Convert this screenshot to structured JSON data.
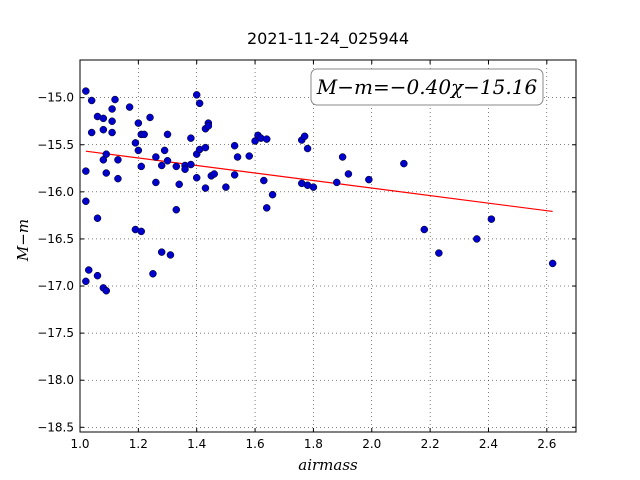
{
  "chart_data": {
    "type": "scatter",
    "title": "2021-11-24_025944",
    "xlabel": "airmass",
    "ylabel": "M−m",
    "xlim": [
      1.0,
      2.7
    ],
    "ylim": [
      -18.55,
      -14.6
    ],
    "xticks": [
      1.0,
      1.2,
      1.4,
      1.6,
      1.8,
      2.0,
      2.2,
      2.4,
      2.6
    ],
    "xtick_labels": [
      "1.0",
      "1.2",
      "1.4",
      "1.6",
      "1.8",
      "2.0",
      "2.2",
      "2.4",
      "2.6"
    ],
    "yticks": [
      -15.0,
      -15.5,
      -16.0,
      -16.5,
      -17.0,
      -17.5,
      -18.0,
      -18.5
    ],
    "ytick_labels": [
      "−15.0",
      "−15.5",
      "−16.0",
      "−16.5",
      "−17.0",
      "−17.5",
      "−18.0",
      "−18.5"
    ],
    "grid": true,
    "annotation": "M−m=−0.40χ−15.16",
    "fit": {
      "slope": -0.4,
      "intercept": -15.16,
      "x_range": [
        1.02,
        2.62
      ],
      "color": "#ff0000"
    },
    "point_color": "#0000cc",
    "points": [
      [
        1.02,
        -14.93
      ],
      [
        1.04,
        -15.03
      ],
      [
        1.02,
        -15.78
      ],
      [
        1.02,
        -16.1
      ],
      [
        1.04,
        -15.37
      ],
      [
        1.06,
        -15.2
      ],
      [
        1.08,
        -15.22
      ],
      [
        1.08,
        -15.34
      ],
      [
        1.11,
        -15.25
      ],
      [
        1.11,
        -15.12
      ],
      [
        1.12,
        -15.02
      ],
      [
        1.11,
        -15.37
      ],
      [
        1.09,
        -15.6
      ],
      [
        1.08,
        -15.66
      ],
      [
        1.13,
        -15.66
      ],
      [
        1.09,
        -15.8
      ],
      [
        1.13,
        -15.86
      ],
      [
        1.06,
        -16.28
      ],
      [
        1.03,
        -16.83
      ],
      [
        1.06,
        -16.89
      ],
      [
        1.02,
        -16.95
      ],
      [
        1.08,
        -17.02
      ],
      [
        1.09,
        -17.05
      ],
      [
        1.17,
        -15.1
      ],
      [
        1.2,
        -15.27
      ],
      [
        1.21,
        -15.39
      ],
      [
        1.22,
        -15.39
      ],
      [
        1.19,
        -15.48
      ],
      [
        1.2,
        -15.56
      ],
      [
        1.21,
        -15.73
      ],
      [
        1.19,
        -16.4
      ],
      [
        1.21,
        -16.42
      ],
      [
        1.24,
        -15.21
      ],
      [
        1.26,
        -15.63
      ],
      [
        1.28,
        -15.72
      ],
      [
        1.29,
        -15.56
      ],
      [
        1.3,
        -15.67
      ],
      [
        1.3,
        -15.39
      ],
      [
        1.26,
        -15.9
      ],
      [
        1.33,
        -15.73
      ],
      [
        1.34,
        -15.92
      ],
      [
        1.33,
        -16.19
      ],
      [
        1.25,
        -16.87
      ],
      [
        1.28,
        -16.64
      ],
      [
        1.31,
        -16.67
      ],
      [
        1.36,
        -15.72
      ],
      [
        1.36,
        -15.76
      ],
      [
        1.38,
        -15.43
      ],
      [
        1.38,
        -15.71
      ],
      [
        1.4,
        -14.97
      ],
      [
        1.41,
        -15.06
      ],
      [
        1.4,
        -15.6
      ],
      [
        1.41,
        -15.55
      ],
      [
        1.43,
        -15.33
      ],
      [
        1.43,
        -15.53
      ],
      [
        1.44,
        -15.27
      ],
      [
        1.44,
        -15.3
      ],
      [
        1.4,
        -15.85
      ],
      [
        1.43,
        -15.96
      ],
      [
        1.45,
        -15.83
      ],
      [
        1.46,
        -15.81
      ],
      [
        1.5,
        -15.95
      ],
      [
        1.53,
        -15.51
      ],
      [
        1.54,
        -15.63
      ],
      [
        1.53,
        -15.82
      ],
      [
        1.58,
        -15.62
      ],
      [
        1.6,
        -15.46
      ],
      [
        1.61,
        -15.4
      ],
      [
        1.62,
        -15.43
      ],
      [
        1.63,
        -15.88
      ],
      [
        1.64,
        -15.44
      ],
      [
        1.64,
        -16.17
      ],
      [
        1.66,
        -16.03
      ],
      [
        1.76,
        -15.45
      ],
      [
        1.77,
        -15.41
      ],
      [
        1.78,
        -15.54
      ],
      [
        1.76,
        -15.91
      ],
      [
        1.78,
        -15.93
      ],
      [
        1.8,
        -15.95
      ],
      [
        1.88,
        -15.9
      ],
      [
        1.9,
        -15.63
      ],
      [
        1.92,
        -15.81
      ],
      [
        1.99,
        -15.87
      ],
      [
        2.11,
        -15.7
      ],
      [
        2.18,
        -16.4
      ],
      [
        2.23,
        -16.65
      ],
      [
        2.36,
        -16.5
      ],
      [
        2.41,
        -16.29
      ],
      [
        2.62,
        -16.76
      ]
    ]
  }
}
